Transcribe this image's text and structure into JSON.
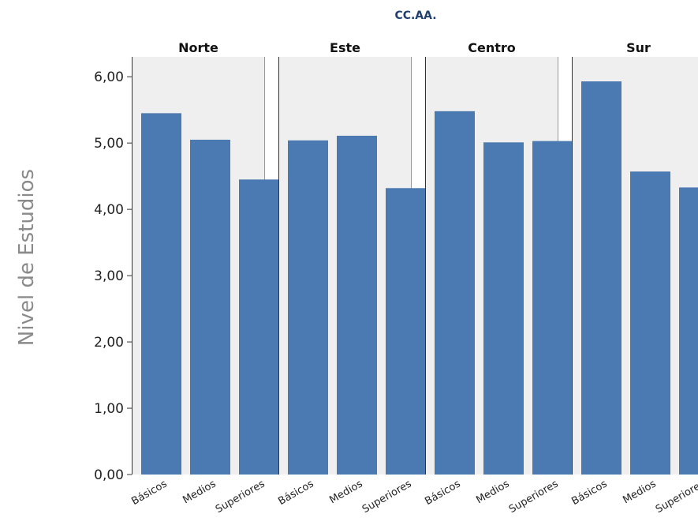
{
  "chart_data": {
    "type": "bar",
    "super_title": "CC.AA.",
    "ylabel": "Nivel de Estudios",
    "xlabel": "",
    "ylim": [
      0,
      6.3
    ],
    "y_ticks": [
      "0,00",
      "1,00",
      "2,00",
      "3,00",
      "4,00",
      "5,00",
      "6,00"
    ],
    "y_tick_values": [
      0,
      1,
      2,
      3,
      4,
      5,
      6
    ],
    "categories": [
      "Básicos",
      "Medios",
      "Superiores"
    ],
    "bar_color": "#4b79b2",
    "panel_color": "#efefef",
    "facets": [
      {
        "name": "Norte",
        "values": [
          5.45,
          5.05,
          4.45
        ]
      },
      {
        "name": "Este",
        "values": [
          5.04,
          5.11,
          4.32
        ]
      },
      {
        "name": "Centro",
        "values": [
          5.48,
          5.01,
          5.03
        ]
      },
      {
        "name": "Sur",
        "values": [
          5.93,
          4.57,
          4.33
        ]
      }
    ]
  }
}
